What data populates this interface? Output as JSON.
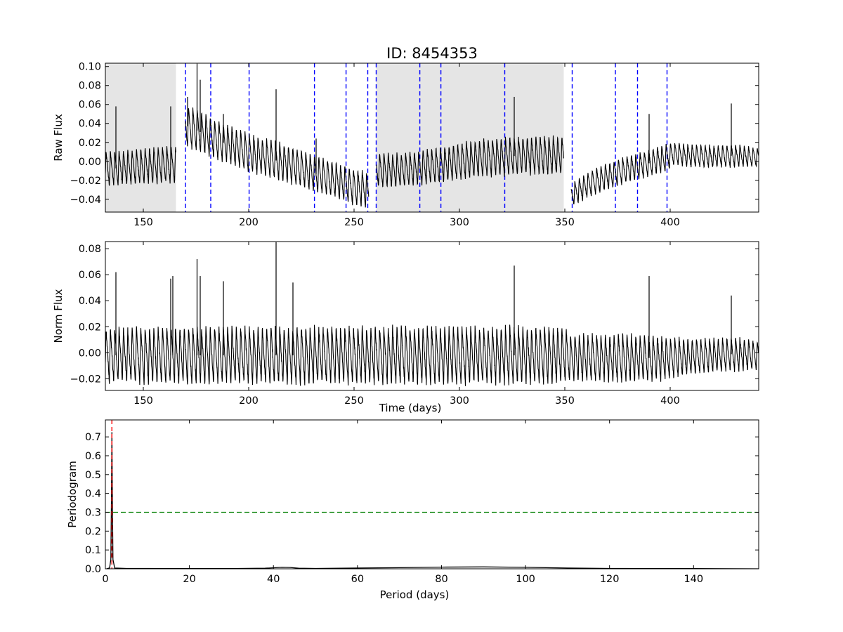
{
  "chart_data": [
    {
      "type": "line",
      "panel": "raw",
      "title": "ID: 8454353",
      "xlabel": "",
      "ylabel": "Raw Flux",
      "xlim": [
        132,
        442
      ],
      "ylim": [
        -0.0535,
        0.1035
      ],
      "xticks": [
        150,
        200,
        250,
        300,
        350,
        400
      ],
      "yticks": [
        -0.04,
        -0.02,
        0.0,
        0.02,
        0.04,
        0.06,
        0.08,
        0.1
      ],
      "ytick_labels": [
        "−0.04",
        "−0.02",
        "0.00",
        "0.02",
        "0.04",
        "0.06",
        "0.08",
        "0.10"
      ],
      "shaded_regions": [
        [
          132,
          165.5
        ],
        [
          260.5,
          349.5
        ]
      ],
      "shade_color": "#e5e5e5",
      "vlines": [
        170,
        182,
        200.2,
        231.2,
        246.2,
        256.5,
        260.5,
        281.2,
        291.2,
        321.5,
        353.5,
        374,
        384.5,
        398.5
      ],
      "vline_color": "#0000ff",
      "line_color": "#000000",
      "series": [
        {
          "x": [
            132,
            140,
            150,
            160,
            165.5,
            166.5,
            170,
            175,
            180,
            185,
            190,
            200,
            210,
            220,
            230,
            240,
            250,
            257,
            258,
            260.5,
            270,
            280,
            290,
            300,
            310,
            320,
            330,
            340,
            349.5,
            351,
            353,
            360,
            370,
            380,
            390,
            398.5,
            401,
            410,
            420,
            430,
            442
          ],
          "center": [
            -0.008,
            -0.007,
            -0.005,
            -0.004,
            -0.004,
            null,
            0.038,
            0.033,
            0.028,
            0.022,
            0.018,
            0.009,
            0.003,
            -0.004,
            -0.012,
            -0.019,
            -0.027,
            -0.031,
            null,
            -0.009,
            -0.01,
            -0.007,
            -0.004,
            0.0,
            0.003,
            0.005,
            0.006,
            0.006,
            0.006,
            null,
            -0.036,
            -0.026,
            -0.016,
            -0.008,
            -0.002,
            0.004,
            0.008,
            0.006,
            0.005,
            0.006,
            0.004
          ],
          "amplitude": [
            0.018,
            0.018,
            0.019,
            0.019,
            0.019,
            null,
            0.022,
            0.022,
            0.021,
            0.021,
            0.02,
            0.02,
            0.02,
            0.02,
            0.019,
            0.019,
            0.019,
            0.019,
            null,
            0.018,
            0.018,
            0.018,
            0.019,
            0.019,
            0.02,
            0.02,
            0.02,
            0.02,
            0.02,
            null,
            0.012,
            0.013,
            0.014,
            0.014,
            0.014,
            0.015,
            0.012,
            0.012,
            0.012,
            0.012,
            0.01
          ],
          "spikes": [
            [
              137,
              0.058
            ],
            [
              163,
              0.058
            ],
            [
              171,
              0.068
            ],
            [
              175.5,
              0.103
            ],
            [
              177,
              0.086
            ],
            [
              188,
              0.05
            ],
            [
              213,
              0.076
            ],
            [
              232,
              0.024
            ],
            [
              326,
              0.068
            ],
            [
              390,
              0.05
            ],
            [
              429,
              0.061
            ]
          ]
        }
      ]
    },
    {
      "type": "line",
      "panel": "normalized",
      "title": "",
      "xlabel": "Time (days)",
      "ylabel": "Norm Flux",
      "xlim": [
        132,
        442
      ],
      "ylim": [
        -0.029,
        0.0855
      ],
      "xticks": [
        150,
        200,
        250,
        300,
        350,
        400
      ],
      "yticks": [
        -0.02,
        0.0,
        0.02,
        0.04,
        0.06,
        0.08
      ],
      "ytick_labels": [
        "−0.02",
        "0.00",
        "0.02",
        "0.04",
        "0.06",
        "0.08"
      ],
      "line_color": "#000000",
      "series": [
        {
          "x": [
            132,
            140,
            150,
            160,
            165.5,
            170,
            180,
            190,
            200,
            210,
            220,
            230,
            240,
            250,
            260,
            270,
            280,
            290,
            300,
            310,
            320,
            330,
            340,
            350,
            353,
            360,
            370,
            380,
            390,
            400,
            410,
            420,
            430,
            442
          ],
          "center": [
            -0.002,
            -0.002,
            -0.002,
            -0.002,
            -0.002,
            -0.002,
            -0.002,
            -0.002,
            -0.002,
            -0.002,
            -0.002,
            -0.002,
            -0.002,
            -0.002,
            -0.002,
            -0.002,
            -0.002,
            -0.002,
            -0.002,
            -0.002,
            -0.002,
            -0.002,
            -0.002,
            -0.002,
            -0.004,
            -0.004,
            -0.004,
            -0.004,
            -0.004,
            -0.004,
            -0.003,
            -0.002,
            -0.001,
            -0.002
          ],
          "amplitude": [
            0.021,
            0.021,
            0.022,
            0.022,
            0.022,
            0.022,
            0.022,
            0.022,
            0.022,
            0.022,
            0.022,
            0.022,
            0.022,
            0.022,
            0.022,
            0.022,
            0.022,
            0.022,
            0.022,
            0.022,
            0.022,
            0.022,
            0.022,
            0.022,
            0.018,
            0.018,
            0.018,
            0.018,
            0.018,
            0.016,
            0.014,
            0.013,
            0.013,
            0.011
          ],
          "spikes": [
            [
              137,
              0.062
            ],
            [
              163,
              0.057
            ],
            [
              164,
              0.059
            ],
            [
              175.5,
              0.072
            ],
            [
              177,
              0.059
            ],
            [
              188,
              0.055
            ],
            [
              213,
              0.085
            ],
            [
              221,
              0.054
            ],
            [
              326,
              0.067
            ],
            [
              390,
              0.059
            ],
            [
              429,
              0.044
            ]
          ]
        }
      ]
    },
    {
      "type": "line",
      "panel": "periodogram",
      "title": "",
      "xlabel": "Period (days)",
      "ylabel": "Periodogram",
      "xlim": [
        0,
        155.5
      ],
      "ylim": [
        0,
        0.79
      ],
      "xticks": [
        0,
        20,
        40,
        60,
        80,
        100,
        120,
        140
      ],
      "yticks": [
        0.0,
        0.1,
        0.2,
        0.3,
        0.4,
        0.5,
        0.6,
        0.7
      ],
      "ytick_labels": [
        "0.0",
        "0.1",
        "0.2",
        "0.3",
        "0.4",
        "0.5",
        "0.6",
        "0.7"
      ],
      "threshold": 0.3,
      "threshold_color": "#008000",
      "peak_period": 1.55,
      "peak_color": "#ff0000",
      "line_color": "#000000",
      "series": [
        {
          "x": [
            0.3,
            1.0,
            1.3,
            1.45,
            1.55,
            1.65,
            1.8,
            2.2,
            5,
            10,
            20,
            30,
            38,
            42,
            44,
            46,
            50,
            60,
            70,
            80,
            90,
            100,
            110,
            120,
            130,
            140,
            155.5
          ],
          "y": [
            0.0,
            0.005,
            0.05,
            0.4,
            0.725,
            0.4,
            0.05,
            0.004,
            0.002,
            0.002,
            0.001,
            0.001,
            0.003,
            0.008,
            0.007,
            0.003,
            0.002,
            0.004,
            0.006,
            0.009,
            0.01,
            0.008,
            0.004,
            0.002,
            0.001,
            0.001,
            0.0
          ]
        }
      ]
    }
  ]
}
